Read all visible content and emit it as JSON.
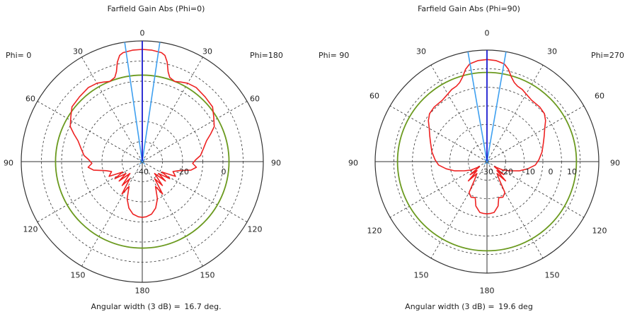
{
  "chart_data": [
    {
      "type": "polar",
      "title": "Farfield Gain Abs (Phi=0)",
      "left_label": "Phi=  0",
      "right_label": "Phi=180",
      "theta_labels": {
        "top": "0",
        "upper_left": "30",
        "upper_right": "30",
        "mid_left": "60",
        "mid_right": "60",
        "left": "90",
        "right": "90",
        "lower_left": "120",
        "lower_right": "120",
        "bottom_left": "150",
        "bottom_right": "150",
        "bottom": "180"
      },
      "r_min": -40,
      "r_max": 20,
      "radial_ticks": [
        "-40",
        "-20",
        "0"
      ],
      "reference_level_db": 3,
      "main_lobe_direction": 0,
      "beamwidth_lines_deg": [
        -8.35,
        8.35
      ],
      "gain_db": [
        [
          0,
          15.8
        ],
        [
          5,
          15.6
        ],
        [
          10,
          15.0
        ],
        [
          12,
          14.0
        ],
        [
          14,
          11.0
        ],
        [
          16,
          6.5
        ],
        [
          18,
          4.0
        ],
        [
          22,
          3.0
        ],
        [
          26,
          4.0
        ],
        [
          30,
          5.0
        ],
        [
          36,
          5.5
        ],
        [
          44,
          4.8
        ],
        [
          52,
          4.2
        ],
        [
          58,
          1.8
        ],
        [
          64,
          -0.3
        ],
        [
          68,
          -3.5
        ],
        [
          72,
          -6.5
        ],
        [
          78,
          -9.0
        ],
        [
          84,
          -11.0
        ],
        [
          88,
          -13.5
        ],
        [
          92,
          -15.0
        ],
        [
          96,
          -13.0
        ],
        [
          100,
          -15.5
        ],
        [
          104,
          -21.5
        ],
        [
          108,
          -24.0
        ],
        [
          114,
          -22.0
        ],
        [
          118,
          -29.0
        ],
        [
          122,
          -24.0
        ],
        [
          126,
          -30.0
        ],
        [
          130,
          -25.0
        ],
        [
          134,
          -31.5
        ],
        [
          140,
          -24.5
        ],
        [
          144,
          -29.5
        ],
        [
          148,
          -21.0
        ],
        [
          152,
          -26.0
        ],
        [
          158,
          -20.0
        ],
        [
          164,
          -16.0
        ],
        [
          170,
          -13.5
        ],
        [
          176,
          -12.5
        ],
        [
          180,
          -12.3
        ],
        [
          184,
          -12.5
        ],
        [
          190,
          -13.5
        ],
        [
          196,
          -16.0
        ],
        [
          202,
          -20.0
        ],
        [
          208,
          -26.0
        ],
        [
          212,
          -21.0
        ],
        [
          216,
          -29.5
        ],
        [
          220,
          -24.5
        ],
        [
          226,
          -31.5
        ],
        [
          230,
          -25.0
        ],
        [
          234,
          -30.0
        ],
        [
          238,
          -24.0
        ],
        [
          242,
          -29.0
        ],
        [
          246,
          -22.0
        ],
        [
          252,
          -24.0
        ],
        [
          256,
          -21.5
        ],
        [
          260,
          -15.5
        ],
        [
          264,
          -13.0
        ],
        [
          268,
          -15.0
        ],
        [
          272,
          -13.5
        ],
        [
          276,
          -11.0
        ],
        [
          282,
          -9.0
        ],
        [
          288,
          -6.5
        ],
        [
          292,
          -3.5
        ],
        [
          296,
          -0.3
        ],
        [
          302,
          1.8
        ],
        [
          308,
          4.2
        ],
        [
          316,
          4.8
        ],
        [
          324,
          5.5
        ],
        [
          330,
          5.0
        ],
        [
          334,
          4.0
        ],
        [
          338,
          3.0
        ],
        [
          342,
          4.0
        ],
        [
          344,
          6.5
        ],
        [
          346,
          11.0
        ],
        [
          348,
          14.0
        ],
        [
          350,
          15.0
        ],
        [
          355,
          15.6
        ]
      ],
      "angular_width_label": "Angular width (3 dB) =",
      "angular_width_value": "16.7 deg."
    },
    {
      "type": "polar",
      "title": "Farfield Gain Abs (Phi=90)",
      "left_label": "Phi= 90",
      "right_label": "Phi=270",
      "theta_labels": {
        "top": "0",
        "upper_left": "30",
        "upper_right": "30",
        "mid_left": "60",
        "mid_right": "60",
        "left": "90",
        "right": "90",
        "lower_left": "120",
        "lower_right": "120",
        "bottom_left": "150",
        "bottom_right": "150",
        "bottom": "180"
      },
      "r_min": -30,
      "r_max": 20,
      "radial_ticks": [
        "-30",
        "-20",
        "-10",
        "0",
        "10"
      ],
      "reference_level_db": 10,
      "main_lobe_direction": 0,
      "beamwidth_lines_deg": [
        -9.8,
        9.8
      ],
      "gain_db": [
        [
          0,
          15.8
        ],
        [
          5,
          15.5
        ],
        [
          10,
          14.5
        ],
        [
          13,
          12.5
        ],
        [
          16,
          9.5
        ],
        [
          19,
          7.5
        ],
        [
          22,
          6.5
        ],
        [
          26,
          6.0
        ],
        [
          30,
          5.0
        ],
        [
          36,
          4.0
        ],
        [
          44,
          4.0
        ],
        [
          50,
          3.5
        ],
        [
          55,
          2.0
        ],
        [
          60,
          -0.2
        ],
        [
          66,
          -2.0
        ],
        [
          72,
          -3.5
        ],
        [
          80,
          -5.0
        ],
        [
          88,
          -6.8
        ],
        [
          94,
          -8.3
        ],
        [
          100,
          -11.5
        ],
        [
          106,
          -15.0
        ],
        [
          112,
          -19.0
        ],
        [
          118,
          -22.0
        ],
        [
          124,
          -26.0
        ],
        [
          128,
          -20.5
        ],
        [
          132,
          -24.0
        ],
        [
          136,
          -18.0
        ],
        [
          140,
          -23.0
        ],
        [
          146,
          -20.0
        ],
        [
          150,
          -14.0
        ],
        [
          156,
          -12.5
        ],
        [
          162,
          -13.0
        ],
        [
          166,
          -9.5
        ],
        [
          172,
          -7.0
        ],
        [
          176,
          -6.7
        ],
        [
          180,
          -6.6
        ],
        [
          184,
          -6.7
        ],
        [
          188,
          -7.0
        ],
        [
          194,
          -9.5
        ],
        [
          198,
          -13.0
        ],
        [
          204,
          -12.5
        ],
        [
          210,
          -14.0
        ],
        [
          214,
          -20.0
        ],
        [
          220,
          -23.0
        ],
        [
          224,
          -18.0
        ],
        [
          228,
          -24.0
        ],
        [
          232,
          -20.5
        ],
        [
          236,
          -26.0
        ],
        [
          242,
          -22.0
        ],
        [
          248,
          -19.0
        ],
        [
          254,
          -15.0
        ],
        [
          260,
          -11.5
        ],
        [
          266,
          -8.3
        ],
        [
          272,
          -6.8
        ],
        [
          280,
          -5.0
        ],
        [
          288,
          -3.5
        ],
        [
          294,
          -2.0
        ],
        [
          300,
          -0.2
        ],
        [
          305,
          2.0
        ],
        [
          310,
          3.5
        ],
        [
          316,
          4.0
        ],
        [
          324,
          4.0
        ],
        [
          330,
          5.0
        ],
        [
          334,
          6.0
        ],
        [
          338,
          6.5
        ],
        [
          341,
          7.5
        ],
        [
          344,
          9.5
        ],
        [
          347,
          12.5
        ],
        [
          350,
          14.5
        ],
        [
          355,
          15.5
        ]
      ],
      "angular_width_label": "Angular width (3 dB) =",
      "angular_width_value": "19.6 deg"
    }
  ],
  "colors": {
    "gain_curve": "#ee2222",
    "main_lobe": "#1a1ad0",
    "beamwidth_lines": "#3fa0f0",
    "reference_circle": "#6b9a1f",
    "grid": "#333333"
  }
}
